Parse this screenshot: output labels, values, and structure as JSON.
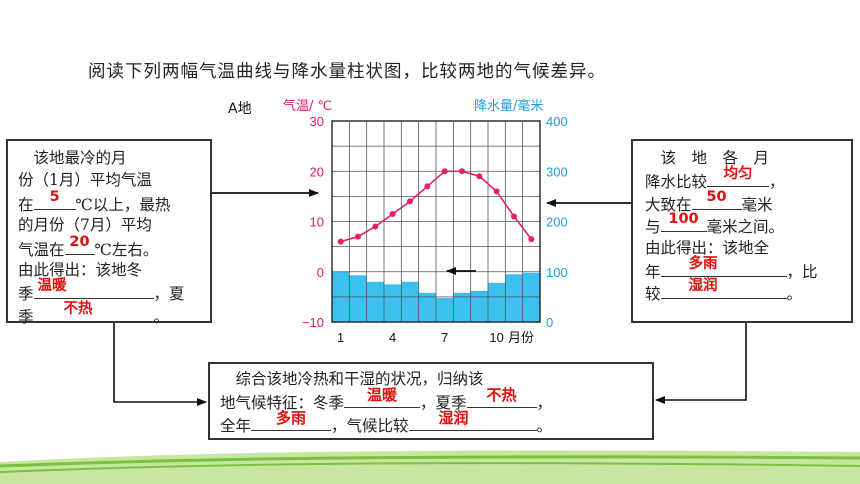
{
  "title": "阅读下列两幅气温曲线与降水量柱状图，比较两地的气候差异。",
  "left_box": {
    "lines": [
      "　该地最冷的月",
      "份（1月）平均气温",
      "在",
      "℃以上，最热",
      "的月份（7月）平均",
      "气温在",
      "℃左右。",
      "由此得出：该地冬",
      "季",
      "，夏",
      "季",
      "。"
    ],
    "answers": {
      "min_temp": "5",
      "max_temp": "20",
      "winter": "温暖",
      "summer": "不热"
    }
  },
  "right_box": {
    "lines": [
      "　该　地　各　月",
      "降水比较",
      "，",
      "大致在",
      "毫米",
      "与",
      "毫米之间。",
      "由此得出：该地全",
      "年",
      "，比",
      "较",
      "。"
    ],
    "answers": {
      "evenness": "均匀",
      "min_precip": "50",
      "max_precip": "100",
      "annual": "多雨",
      "overall": "湿润"
    }
  },
  "bottom_box": {
    "lines": [
      "　综合该地冷热和干湿的状况，归纳该",
      "地气候特征：冬季",
      "，夏季",
      "，",
      "全年",
      "，气候比较",
      "。"
    ],
    "answers": {
      "winter": "温暖",
      "summer": "不热",
      "year": "多雨",
      "overall": "湿润"
    }
  },
  "chart_label": "A地",
  "chart_data": {
    "type": "line+bar",
    "temp_axis_label": "气温/ ℃",
    "precip_axis_label": "降水量/毫米",
    "x_unit": "月份",
    "x_ticks": [
      "1",
      "4",
      "7",
      "10"
    ],
    "temp_ticks": [
      "30",
      "20",
      "10",
      "0",
      "−10"
    ],
    "precip_ticks": [
      "400",
      "300",
      "200",
      "100",
      "0"
    ],
    "temp_range": [
      -10,
      30
    ],
    "precip_range": [
      0,
      400
    ],
    "months": [
      1,
      2,
      3,
      4,
      5,
      6,
      7,
      8,
      9,
      10,
      11,
      12
    ],
    "temperature": [
      6,
      7,
      9,
      11.5,
      14,
      17,
      20,
      20,
      19,
      16,
      11,
      6.5
    ],
    "precipitation": [
      100,
      93,
      80,
      75,
      80,
      58,
      48,
      58,
      62,
      78,
      95,
      98
    ],
    "temp_color": "#e0206a",
    "precip_color": "#3cc0f0"
  },
  "footer_colors": {
    "green": "#7cc142",
    "light": "#c8e6a0"
  }
}
